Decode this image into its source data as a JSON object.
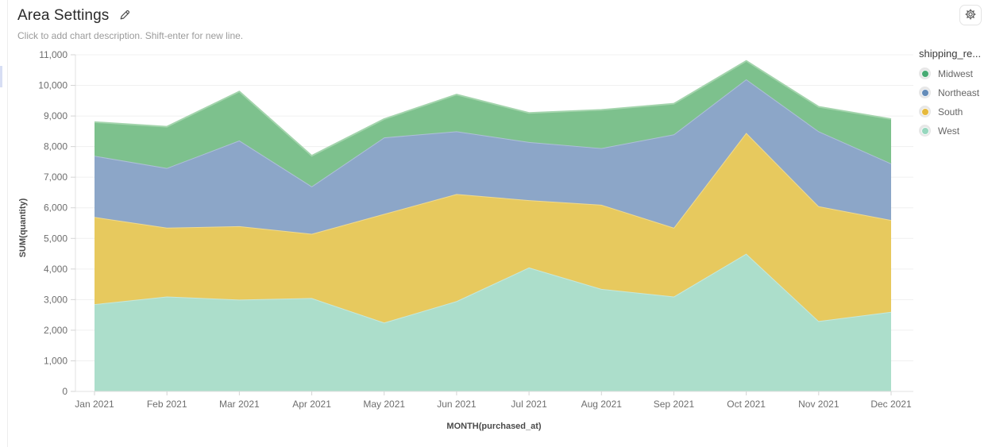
{
  "header": {
    "title": "Area Settings",
    "description_placeholder": "Click to add chart description. Shift-enter for new line.",
    "edit_icon": "pencil-icon",
    "settings_icon": "gear-icon"
  },
  "legend": {
    "title": "shipping_re...",
    "items": [
      {
        "label": "Midwest",
        "color": "#46aa73"
      },
      {
        "label": "Northeast",
        "color": "#648cb9"
      },
      {
        "label": "South",
        "color": "#e6b93c"
      },
      {
        "label": "West",
        "color": "#96d7be"
      }
    ]
  },
  "chart_data": {
    "type": "area",
    "stacked": true,
    "title": "Area Settings",
    "xlabel": "MONTH(purchased_at)",
    "ylabel": "SUM(quantity)",
    "ylim": [
      0,
      11000
    ],
    "ytick_step": 1000,
    "grid": true,
    "legend_position": "right",
    "categories": [
      "Jan 2021",
      "Feb 2021",
      "Mar 2021",
      "Apr 2021",
      "May 2021",
      "Jun 2021",
      "Jul 2021",
      "Aug 2021",
      "Sep 2021",
      "Oct 2021",
      "Nov 2021",
      "Dec 2021"
    ],
    "series": [
      {
        "name": "West",
        "color": "#96d7be",
        "fill": "#acdecb",
        "line": "#c6e8dc",
        "values": [
          2850,
          3100,
          3000,
          3050,
          2250,
          2950,
          4050,
          3350,
          3100,
          4500,
          2300,
          2600
        ]
      },
      {
        "name": "South",
        "color": "#e6b93c",
        "fill": "#e7c95e",
        "line": "#f0da8e",
        "values": [
          2850,
          2250,
          2400,
          2100,
          3550,
          3500,
          2200,
          2750,
          2250,
          3950,
          3750,
          3000
        ]
      },
      {
        "name": "Northeast",
        "color": "#648cb9",
        "fill": "#8ca6c8",
        "line": "#aec0d8",
        "values": [
          2000,
          1950,
          2800,
          1550,
          2500,
          2050,
          1900,
          1850,
          3050,
          1750,
          2450,
          1850
        ]
      },
      {
        "name": "Midwest",
        "color": "#46aa73",
        "fill": "#7dc18d",
        "line": "#a3d4ac",
        "values": [
          1100,
          1350,
          1600,
          1000,
          600,
          1200,
          950,
          1250,
          1000,
          600,
          800,
          1450
        ]
      }
    ]
  }
}
